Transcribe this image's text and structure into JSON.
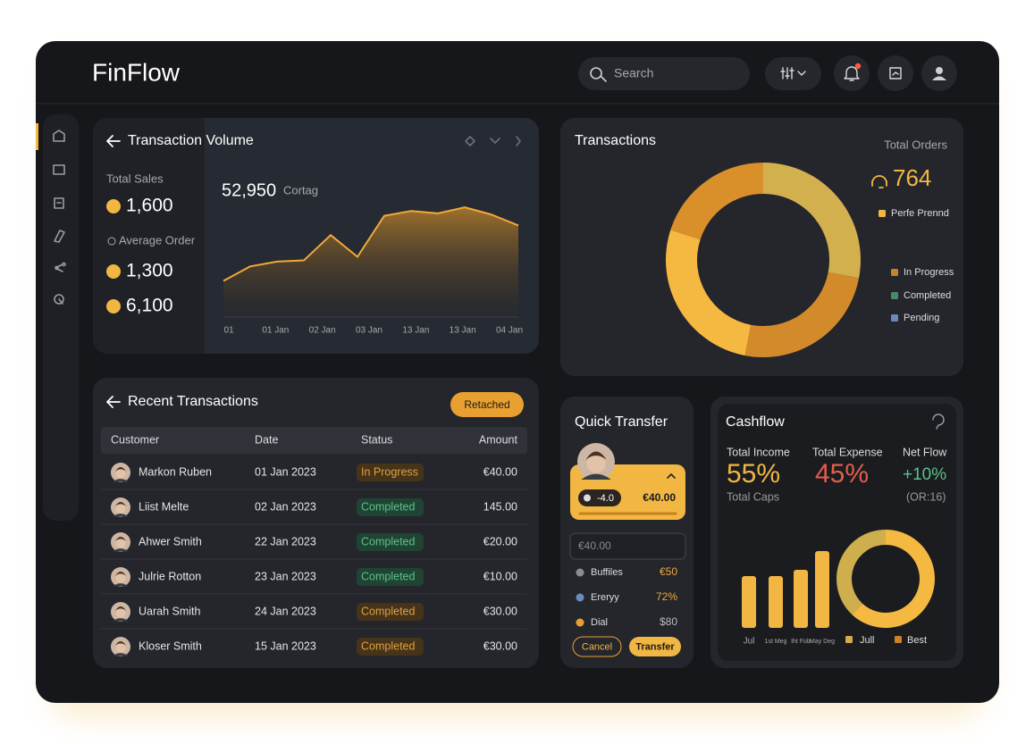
{
  "header": {
    "brand": "FinFlow",
    "search": "Search"
  },
  "volume": {
    "title": "Transaction Volume",
    "total_sales_label": "Total Sales",
    "total_sales": "1,600",
    "average_label": "Average Order",
    "average": "1,300",
    "third": "6,100",
    "headline": "52,950",
    "headline_label": "Cortag",
    "chart": {
      "type": "area",
      "color": "#f2a93b",
      "ylim": [
        0,
        100
      ],
      "values": [
        30,
        42,
        46,
        47,
        68,
        50,
        84,
        88,
        86,
        91,
        85,
        76
      ],
      "x_labels": [
        "01",
        "01 Jan",
        "02 Jan",
        "03 Jan",
        "13 Jan",
        "13 Jan",
        "04 Jan"
      ]
    }
  },
  "transactions": {
    "title": "Transactions",
    "total_label": "Total Orders",
    "total": "764",
    "chart": {
      "type": "donut",
      "values": [
        28,
        25,
        27,
        20
      ],
      "colors": [
        "#d3b04e",
        "#d38a2a",
        "#f5b942",
        "#d98f2a"
      ]
    },
    "legend": [
      {
        "name": "Perfe Prennd",
        "color": "#f2b642"
      },
      {
        "name": "In Progress",
        "color": "#c9822a"
      },
      {
        "name": "Completed",
        "color": "#4a8a6a"
      },
      {
        "name": "Pending",
        "color": "#6a8ac0"
      }
    ]
  },
  "recent": {
    "title": "Recent Transactions",
    "button": "Retached",
    "columns": [
      "Customer",
      "Date",
      "Status",
      "Amount"
    ],
    "rows": [
      [
        "Markon Ruben",
        "01 Jan 2023",
        "In Progress",
        "€40.00"
      ],
      [
        "Liist Melte",
        "02 Jan 2023",
        "Completed",
        "145.00"
      ],
      [
        "Ahwer Smith",
        "22 Jan 2023",
        "Completed",
        "€20.00"
      ],
      [
        "Julrie Rotton",
        "23 Jan 2023",
        "Completed",
        "€10.00"
      ],
      [
        "Uarah Smith",
        "24 Jan 2023",
        "Completed",
        "€30.00"
      ],
      [
        "Kloser Smith",
        "15 Jan 2023",
        "Completed",
        "€30.00"
      ]
    ]
  },
  "quick_transfer": {
    "title": "Quick Transfer",
    "badge": "-4.0",
    "amount": "€40.00",
    "input": "€40.00",
    "items": [
      {
        "name": "Buffiles",
        "value": "€50"
      },
      {
        "name": "Ereryy",
        "value": "72%"
      },
      {
        "name": "Dial",
        "value": "$80"
      }
    ],
    "cancel": "Cancel",
    "transfer": "Transfer"
  },
  "cashflow": {
    "title": "Cashflow",
    "stats": [
      {
        "label": "Total Income",
        "value": "55%",
        "note": "Total Caps"
      },
      {
        "label": "Total Expense",
        "value": "45%"
      },
      {
        "label": "Net Flow",
        "value": "+10%",
        "note": "(OR:16)"
      }
    ],
    "bars": {
      "type": "bar",
      "categories": [
        "Jul",
        "1st Meg",
        "Iht Fob",
        "May Deg"
      ],
      "values": [
        58,
        58,
        65,
        86
      ],
      "ylim": [
        0,
        100
      ],
      "color": "#f2b642"
    },
    "donut": {
      "type": "donut",
      "values": [
        62,
        38
      ],
      "colors": [
        "#f5b942",
        "#cfae4e"
      ]
    },
    "legend": [
      {
        "name": "Jull",
        "color": "#cfae4e"
      },
      {
        "name": "Best",
        "color": "#c9822a"
      }
    ]
  }
}
